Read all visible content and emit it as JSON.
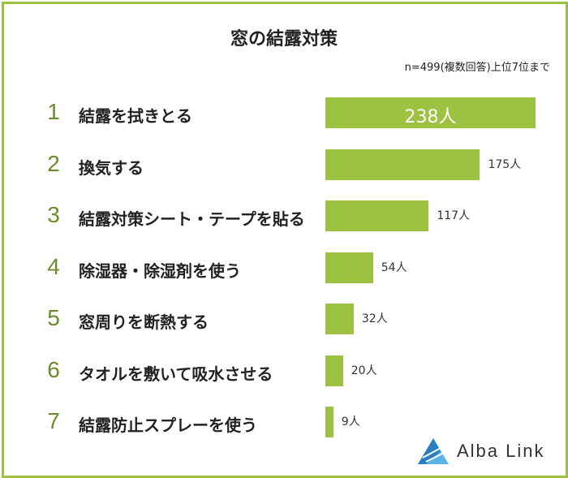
{
  "chart_data": {
    "type": "bar",
    "orientation": "horizontal",
    "title": "窓の結露対策",
    "subtitle": "n=499(複数回答)上位7位まで",
    "unit": "人",
    "ranks": [
      "1",
      "2",
      "3",
      "4",
      "5",
      "6",
      "7"
    ],
    "categories": [
      "結露を拭きとる",
      "換気する",
      "結露対策シート・テープを貼る",
      "除湿器・除湿剤を使う",
      "窓周りを断熱する",
      "タオルを敷いて吸水させる",
      "結露防止スプレーを使う"
    ],
    "values": [
      238,
      175,
      117,
      54,
      32,
      20,
      9
    ],
    "value_labels": [
      "238人",
      "175人",
      "117人",
      "54人",
      "32人",
      "20人",
      "9人"
    ],
    "grid": false,
    "colors": {
      "bar": "#9dc141",
      "rank": "#6a8c2a",
      "border": "#9dc141"
    }
  },
  "logo": {
    "text": "Alba Link",
    "icon": "alba-link-logo-icon",
    "colors": [
      "#2a7fc1",
      "#5ab4e5"
    ]
  }
}
